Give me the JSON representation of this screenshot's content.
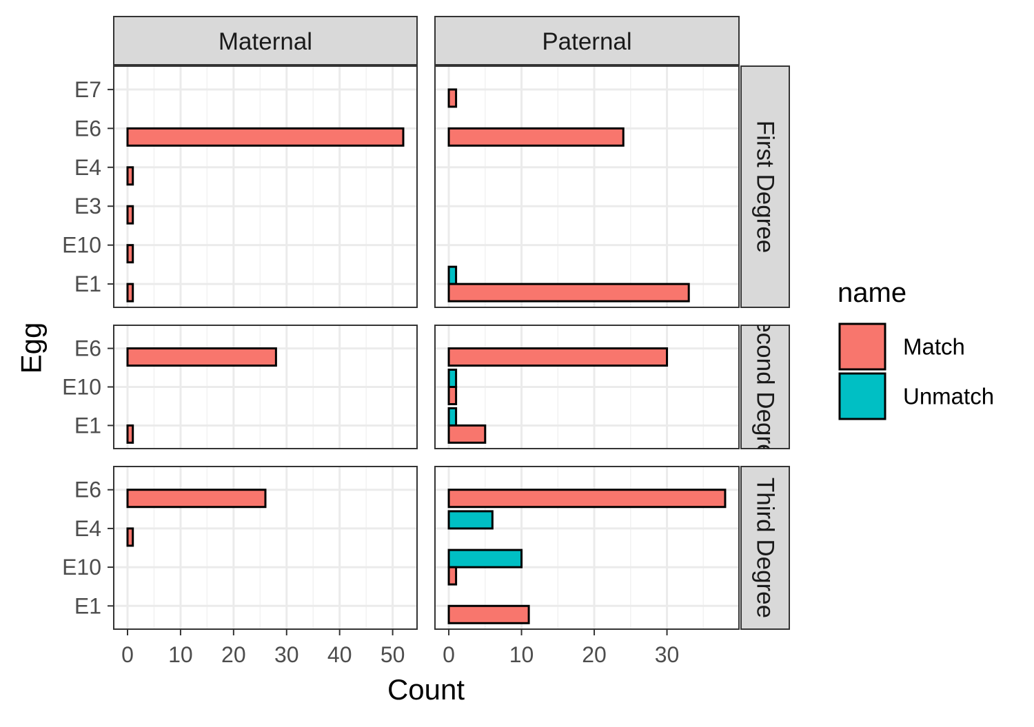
{
  "chart_data": {
    "type": "bar",
    "orientation": "horizontal",
    "faceted": true,
    "xlabel": "Count",
    "ylabel": "Egg",
    "grid": true,
    "legend": {
      "title": "name",
      "placement": "right",
      "entries": [
        {
          "name": "Match",
          "color": "#F8766D"
        },
        {
          "name": "Unmatch",
          "color": "#00BFC4"
        }
      ]
    },
    "columns": [
      {
        "label": "Maternal",
        "xlim": [
          -2.6,
          54.6
        ],
        "ticks": [
          0,
          10,
          20,
          30,
          40,
          50
        ]
      },
      {
        "label": "Paternal",
        "xlim": [
          -1.9,
          39.9
        ],
        "ticks": [
          0,
          10,
          20,
          30
        ]
      }
    ],
    "rows": [
      {
        "label": "First Degree",
        "categories": [
          "E7",
          "E6",
          "E4",
          "E3",
          "E10",
          "E1"
        ]
      },
      {
        "label": "Second Degree",
        "categories": [
          "E6",
          "E10",
          "E1"
        ]
      },
      {
        "label": "Third Degree",
        "categories": [
          "E6",
          "E4",
          "E10",
          "E1"
        ]
      }
    ],
    "panels": [
      {
        "row": "First Degree",
        "column": "Maternal",
        "bars": [
          {
            "category": "E7",
            "Unmatch": 0
          },
          {
            "category": "E6",
            "Match": 52,
            "Unmatch": 0
          },
          {
            "category": "E4",
            "Match": 1,
            "Unmatch": 0
          },
          {
            "category": "E3",
            "Match": 1,
            "Unmatch": 0
          },
          {
            "category": "E10",
            "Match": 1,
            "Unmatch": 0
          },
          {
            "category": "E1",
            "Match": 1,
            "Unmatch": 0
          }
        ]
      },
      {
        "row": "First Degree",
        "column": "Paternal",
        "bars": [
          {
            "category": "E7",
            "Match": 1,
            "Unmatch": 0
          },
          {
            "category": "E6",
            "Match": 24,
            "Unmatch": 0
          },
          {
            "category": "E1",
            "Match": 33,
            "Unmatch": 1
          }
        ]
      },
      {
        "row": "Second Degree",
        "column": "Maternal",
        "bars": [
          {
            "category": "E6",
            "Match": 28,
            "Unmatch": 0
          },
          {
            "category": "E1",
            "Match": 1,
            "Unmatch": 0
          }
        ]
      },
      {
        "row": "Second Degree",
        "column": "Paternal",
        "bars": [
          {
            "category": "E6",
            "Match": 30,
            "Unmatch": 0
          },
          {
            "category": "E10",
            "Match": 1,
            "Unmatch": 1
          },
          {
            "category": "E1",
            "Match": 5,
            "Unmatch": 1
          }
        ]
      },
      {
        "row": "Third Degree",
        "column": "Maternal",
        "bars": [
          {
            "category": "E6",
            "Match": 26,
            "Unmatch": 0
          },
          {
            "category": "E4",
            "Match": 1,
            "Unmatch": 0
          }
        ]
      },
      {
        "row": "Third Degree",
        "column": "Paternal",
        "bars": [
          {
            "category": "E6",
            "Match": 38,
            "Unmatch": 0
          },
          {
            "category": "E4",
            "Unmatch": 6
          },
          {
            "category": "E10",
            "Match": 1,
            "Unmatch": 10
          },
          {
            "category": "E1",
            "Match": 11,
            "Unmatch": 0
          }
        ]
      }
    ]
  }
}
